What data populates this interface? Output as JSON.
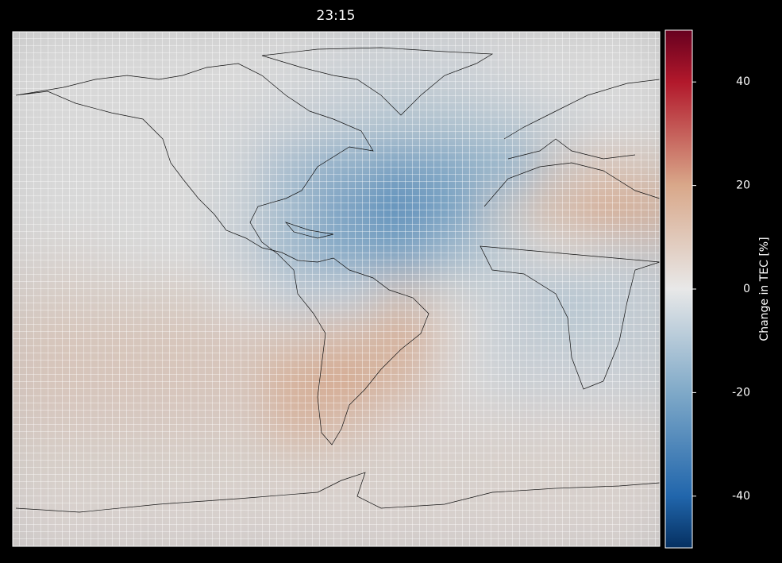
{
  "title": "23:15",
  "colorbar": {
    "label": "Change in TEC [%]",
    "lim": [
      -50,
      50
    ],
    "ticks": [
      -40,
      -20,
      0,
      20,
      40
    ]
  },
  "field": [
    [
      0,
      0,
      0,
      0,
      0,
      0,
      -2,
      -2,
      -2,
      0,
      0,
      0
    ],
    [
      0,
      0,
      0,
      0,
      0,
      -2,
      -4,
      -5,
      -4,
      -2,
      0,
      0
    ],
    [
      0,
      0,
      0,
      0,
      -2,
      -5,
      -8,
      -10,
      -10,
      -8,
      -3,
      0
    ],
    [
      0,
      0,
      0,
      0,
      -4,
      -15,
      -20,
      -25,
      -20,
      -15,
      8,
      10
    ],
    [
      0,
      0,
      0,
      0,
      -5,
      -15,
      -25,
      -30,
      -20,
      5,
      15,
      20
    ],
    [
      2,
      2,
      0,
      0,
      -5,
      -15,
      -20,
      -20,
      -10,
      -5,
      0,
      -5
    ],
    [
      5,
      5,
      5,
      5,
      0,
      -5,
      -3,
      10,
      0,
      -5,
      -10,
      -5
    ],
    [
      8,
      8,
      8,
      8,
      8,
      10,
      15,
      18,
      0,
      -5,
      -5,
      -5
    ],
    [
      8,
      8,
      8,
      8,
      8,
      20,
      20,
      10,
      0,
      -3,
      -3,
      -3
    ],
    [
      6,
      6,
      6,
      6,
      6,
      15,
      8,
      3,
      3,
      3,
      3,
      3
    ],
    [
      4,
      4,
      4,
      4,
      4,
      4,
      4,
      4,
      4,
      4,
      4,
      4
    ],
    [
      3,
      3,
      3,
      3,
      3,
      3,
      3,
      3,
      3,
      3,
      3,
      3
    ]
  ]
}
